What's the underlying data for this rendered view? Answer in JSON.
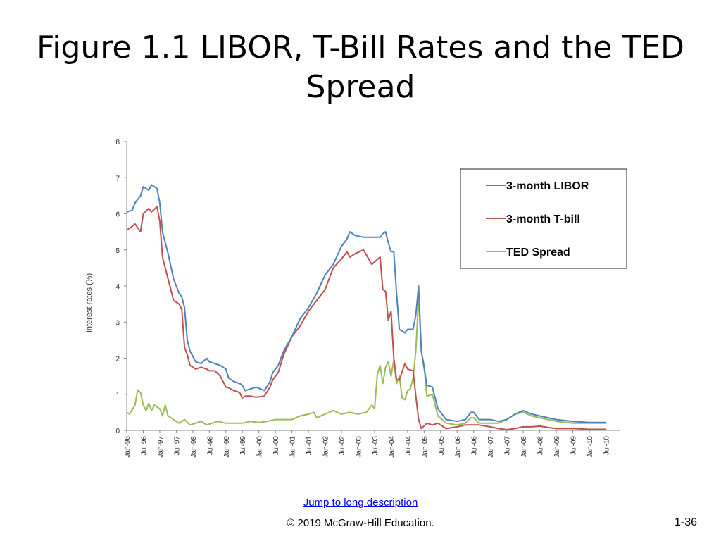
{
  "slide": {
    "title": "Figure 1.1  LIBOR, T-Bill Rates and the TED Spread",
    "link_text": "Jump to long description",
    "copyright": "© 2019 McGraw-Hill Education.",
    "page_number": "1-36"
  },
  "chart_data": {
    "type": "line",
    "title": "",
    "xlabel": "",
    "ylabel": "Interest rates (%)",
    "ylim": [
      0,
      8
    ],
    "yticks": [
      0,
      1,
      2,
      3,
      4,
      5,
      6,
      7,
      8
    ],
    "xtick_labels": [
      "Jan-96",
      "Jul-96",
      "Jan-97",
      "Jul-97",
      "Jan-98",
      "Jul-98",
      "Jan-99",
      "Jul-99",
      "Jan-00",
      "Jul-00",
      "Jan-01",
      "Jul-01",
      "Jan-02",
      "Jul-02",
      "Jan-03",
      "Jul-03",
      "Jan-04",
      "Jul-04",
      "Jan-05",
      "Jul-05",
      "Jan-06",
      "Jul-06",
      "Jan-07",
      "Jul-07",
      "Jan-08",
      "Jul-08",
      "Jan-09",
      "Jul-09",
      "Jan-10",
      "Jul-10"
    ],
    "grid": false,
    "legend_position": "top-right",
    "series": [
      {
        "name": "3-month LIBOR",
        "color": "#4f81bd",
        "points": [
          [
            "Jan-96",
            6.05
          ],
          [
            "Mar-96",
            6.1
          ],
          [
            "Apr-96",
            6.3
          ],
          [
            "Jun-96",
            6.5
          ],
          [
            "Jul-96",
            6.75
          ],
          [
            "Sep-96",
            6.65
          ],
          [
            "Oct-96",
            6.8
          ],
          [
            "Dec-96",
            6.7
          ],
          [
            "Jan-97",
            6.3
          ],
          [
            "Feb-97",
            5.5
          ],
          [
            "Apr-97",
            4.9
          ],
          [
            "Jun-97",
            4.2
          ],
          [
            "Aug-97",
            3.8
          ],
          [
            "Sep-97",
            3.7
          ],
          [
            "Oct-97",
            3.4
          ],
          [
            "Nov-97",
            2.5
          ],
          [
            "Dec-97",
            2.2
          ],
          [
            "Feb-98",
            1.9
          ],
          [
            "Apr-98",
            1.85
          ],
          [
            "Jun-98",
            2.0
          ],
          [
            "Jul-98",
            1.9
          ],
          [
            "Sep-98",
            1.85
          ],
          [
            "Nov-98",
            1.8
          ],
          [
            "Jan-99",
            1.7
          ],
          [
            "Feb-99",
            1.45
          ],
          [
            "Apr-99",
            1.35
          ],
          [
            "Jun-99",
            1.3
          ],
          [
            "Jul-99",
            1.25
          ],
          [
            "Aug-99",
            1.1
          ],
          [
            "Oct-99",
            1.15
          ],
          [
            "Dec-99",
            1.2
          ],
          [
            "Mar-00",
            1.1
          ],
          [
            "May-00",
            1.35
          ],
          [
            "Jun-00",
            1.6
          ],
          [
            "Aug-00",
            1.8
          ],
          [
            "Oct-00",
            2.2
          ],
          [
            "Jan-01",
            2.6
          ],
          [
            "Apr-01",
            3.1
          ],
          [
            "Jul-01",
            3.4
          ],
          [
            "Oct-01",
            3.8
          ],
          [
            "Jan-02",
            4.3
          ],
          [
            "Apr-02",
            4.6
          ],
          [
            "Jul-02",
            5.1
          ],
          [
            "Sep-02",
            5.3
          ],
          [
            "Oct-02",
            5.5
          ],
          [
            "Dec-02",
            5.4
          ],
          [
            "Mar-03",
            5.35
          ],
          [
            "Jun-03",
            5.35
          ],
          [
            "Sep-03",
            5.35
          ],
          [
            "Oct-03",
            5.45
          ],
          [
            "Nov-03",
            5.5
          ],
          [
            "Dec-03",
            5.2
          ],
          [
            "Jan-04",
            4.95
          ],
          [
            "Feb-04",
            4.95
          ],
          [
            "Mar-04",
            3.8
          ],
          [
            "Apr-04",
            2.8
          ],
          [
            "Jun-04",
            2.7
          ],
          [
            "Jul-04",
            2.8
          ],
          [
            "Sep-04",
            2.8
          ],
          [
            "Oct-04",
            3.2
          ],
          [
            "Nov-04",
            4.0
          ],
          [
            "Dec-04",
            2.2
          ],
          [
            "Feb-05",
            1.25
          ],
          [
            "Apr-05",
            1.2
          ],
          [
            "Jun-05",
            0.6
          ],
          [
            "Sep-05",
            0.3
          ],
          [
            "Jan-06",
            0.25
          ],
          [
            "Apr-06",
            0.3
          ],
          [
            "Jun-06",
            0.5
          ],
          [
            "Jul-06",
            0.5
          ],
          [
            "Sep-06",
            0.3
          ],
          [
            "Jan-07",
            0.3
          ],
          [
            "Apr-07",
            0.25
          ],
          [
            "Jul-07",
            0.3
          ],
          [
            "Oct-07",
            0.45
          ],
          [
            "Jan-08",
            0.55
          ],
          [
            "Apr-08",
            0.45
          ],
          [
            "Jul-08",
            0.4
          ],
          [
            "Oct-08",
            0.35
          ],
          [
            "Jan-09",
            0.3
          ],
          [
            "Jul-09",
            0.25
          ],
          [
            "Jan-10",
            0.22
          ],
          [
            "Jul-10",
            0.22
          ]
        ]
      },
      {
        "name": "3-month T-bill",
        "color": "#c0504d",
        "points": [
          [
            "Jan-96",
            5.55
          ],
          [
            "Mar-96",
            5.65
          ],
          [
            "Apr-96",
            5.72
          ],
          [
            "Jun-96",
            5.5
          ],
          [
            "Jul-96",
            6.0
          ],
          [
            "Sep-96",
            6.15
          ],
          [
            "Oct-96",
            6.05
          ],
          [
            "Dec-96",
            6.2
          ],
          [
            "Jan-97",
            5.8
          ],
          [
            "Feb-97",
            4.8
          ],
          [
            "Apr-97",
            4.2
          ],
          [
            "Jun-97",
            3.6
          ],
          [
            "Aug-97",
            3.5
          ],
          [
            "Sep-97",
            3.35
          ],
          [
            "Oct-97",
            2.3
          ],
          [
            "Nov-97",
            2.1
          ],
          [
            "Dec-97",
            1.8
          ],
          [
            "Feb-98",
            1.7
          ],
          [
            "Apr-98",
            1.75
          ],
          [
            "Jun-98",
            1.7
          ],
          [
            "Jul-98",
            1.65
          ],
          [
            "Sep-98",
            1.65
          ],
          [
            "Nov-98",
            1.5
          ],
          [
            "Jan-99",
            1.2
          ],
          [
            "Feb-99",
            1.18
          ],
          [
            "Apr-99",
            1.1
          ],
          [
            "Jun-99",
            1.05
          ],
          [
            "Jul-99",
            0.9
          ],
          [
            "Aug-99",
            0.95
          ],
          [
            "Oct-99",
            0.95
          ],
          [
            "Dec-99",
            0.92
          ],
          [
            "Mar-00",
            0.95
          ],
          [
            "May-00",
            1.2
          ],
          [
            "Jun-00",
            1.4
          ],
          [
            "Aug-00",
            1.6
          ],
          [
            "Oct-00",
            2.1
          ],
          [
            "Jan-01",
            2.6
          ],
          [
            "Apr-01",
            2.9
          ],
          [
            "Jul-01",
            3.3
          ],
          [
            "Oct-01",
            3.6
          ],
          [
            "Jan-02",
            3.9
          ],
          [
            "Apr-02",
            4.5
          ],
          [
            "Jul-02",
            4.75
          ],
          [
            "Sep-02",
            4.95
          ],
          [
            "Oct-02",
            4.8
          ],
          [
            "Dec-02",
            4.9
          ],
          [
            "Mar-03",
            5.0
          ],
          [
            "Jun-03",
            4.6
          ],
          [
            "Sep-03",
            4.8
          ],
          [
            "Oct-03",
            3.9
          ],
          [
            "Nov-03",
            3.85
          ],
          [
            "Dec-03",
            3.05
          ],
          [
            "Jan-04",
            3.3
          ],
          [
            "Feb-04",
            2.0
          ],
          [
            "Mar-04",
            1.4
          ],
          [
            "Apr-04",
            1.4
          ],
          [
            "Jun-04",
            1.85
          ],
          [
            "Jul-04",
            1.7
          ],
          [
            "Sep-04",
            1.65
          ],
          [
            "Oct-04",
            0.95
          ],
          [
            "Nov-04",
            0.3
          ],
          [
            "Dec-04",
            0.05
          ],
          [
            "Feb-05",
            0.2
          ],
          [
            "Apr-05",
            0.15
          ],
          [
            "Jun-05",
            0.2
          ],
          [
            "Sep-05",
            0.05
          ],
          [
            "Jan-06",
            0.1
          ],
          [
            "Apr-06",
            0.15
          ],
          [
            "Jun-06",
            0.15
          ],
          [
            "Jul-06",
            0.15
          ],
          [
            "Sep-06",
            0.15
          ],
          [
            "Jan-07",
            0.1
          ],
          [
            "Apr-07",
            0.05
          ],
          [
            "Jul-07",
            0.02
          ],
          [
            "Oct-07",
            0.05
          ],
          [
            "Jan-08",
            0.1
          ],
          [
            "Apr-08",
            0.1
          ],
          [
            "Jul-08",
            0.12
          ],
          [
            "Oct-08",
            0.08
          ],
          [
            "Jan-09",
            0.05
          ],
          [
            "Jul-09",
            0.05
          ],
          [
            "Jan-10",
            0.03
          ],
          [
            "Jul-10",
            0.03
          ]
        ]
      },
      {
        "name": "TED Spread",
        "color": "#9bbb59",
        "points": [
          [
            "Jan-96",
            0.5
          ],
          [
            "Feb-96",
            0.45
          ],
          [
            "Apr-96",
            0.7
          ],
          [
            "May-96",
            1.12
          ],
          [
            "Jun-96",
            1.05
          ],
          [
            "Jul-96",
            0.7
          ],
          [
            "Aug-96",
            0.55
          ],
          [
            "Sep-96",
            0.75
          ],
          [
            "Oct-96",
            0.55
          ],
          [
            "Nov-96",
            0.7
          ],
          [
            "Jan-97",
            0.6
          ],
          [
            "Feb-97",
            0.4
          ],
          [
            "Mar-97",
            0.7
          ],
          [
            "Apr-97",
            0.4
          ],
          [
            "Jun-97",
            0.3
          ],
          [
            "Aug-97",
            0.2
          ],
          [
            "Oct-97",
            0.3
          ],
          [
            "Dec-97",
            0.15
          ],
          [
            "Feb-98",
            0.2
          ],
          [
            "Apr-98",
            0.25
          ],
          [
            "Jun-98",
            0.15
          ],
          [
            "Aug-98",
            0.2
          ],
          [
            "Oct-98",
            0.25
          ],
          [
            "Jan-99",
            0.2
          ],
          [
            "Apr-99",
            0.2
          ],
          [
            "Jul-99",
            0.2
          ],
          [
            "Oct-99",
            0.25
          ],
          [
            "Jan-00",
            0.22
          ],
          [
            "Apr-00",
            0.25
          ],
          [
            "Jul-00",
            0.3
          ],
          [
            "Oct-00",
            0.3
          ],
          [
            "Jan-01",
            0.3
          ],
          [
            "Apr-01",
            0.4
          ],
          [
            "Jul-01",
            0.45
          ],
          [
            "Sep-01",
            0.5
          ],
          [
            "Oct-01",
            0.35
          ],
          [
            "Jan-02",
            0.45
          ],
          [
            "Apr-02",
            0.55
          ],
          [
            "Jul-02",
            0.45
          ],
          [
            "Oct-02",
            0.5
          ],
          [
            "Jan-03",
            0.45
          ],
          [
            "Apr-03",
            0.5
          ],
          [
            "Jun-03",
            0.7
          ],
          [
            "Jul-03",
            0.6
          ],
          [
            "Aug-03",
            1.55
          ],
          [
            "Sep-03",
            1.8
          ],
          [
            "Oct-03",
            1.3
          ],
          [
            "Nov-03",
            1.75
          ],
          [
            "Dec-03",
            1.9
          ],
          [
            "Jan-04",
            1.5
          ],
          [
            "Feb-04",
            1.95
          ],
          [
            "Mar-04",
            1.3
          ],
          [
            "Apr-04",
            1.5
          ],
          [
            "May-04",
            0.9
          ],
          [
            "Jun-04",
            0.85
          ],
          [
            "Jul-04",
            1.1
          ],
          [
            "Aug-04",
            1.15
          ],
          [
            "Sep-04",
            1.45
          ],
          [
            "Oct-04",
            2.2
          ],
          [
            "Nov-04",
            3.7
          ],
          [
            "Dec-04",
            2.2
          ],
          [
            "Jan-05",
            1.8
          ],
          [
            "Feb-05",
            0.95
          ],
          [
            "Apr-05",
            1.0
          ],
          [
            "Jun-05",
            0.4
          ],
          [
            "Sep-05",
            0.2
          ],
          [
            "Jan-06",
            0.15
          ],
          [
            "Apr-06",
            0.2
          ],
          [
            "Jun-06",
            0.35
          ],
          [
            "Jul-06",
            0.35
          ],
          [
            "Sep-06",
            0.2
          ],
          [
            "Jan-07",
            0.2
          ],
          [
            "Apr-07",
            0.2
          ],
          [
            "Jul-07",
            0.3
          ],
          [
            "Oct-07",
            0.45
          ],
          [
            "Jan-08",
            0.5
          ],
          [
            "Apr-08",
            0.4
          ],
          [
            "Jul-08",
            0.35
          ],
          [
            "Oct-08",
            0.3
          ],
          [
            "Jan-09",
            0.25
          ],
          [
            "Jul-09",
            0.2
          ],
          [
            "Jan-10",
            0.2
          ],
          [
            "Jul-10",
            0.2
          ]
        ]
      }
    ]
  }
}
